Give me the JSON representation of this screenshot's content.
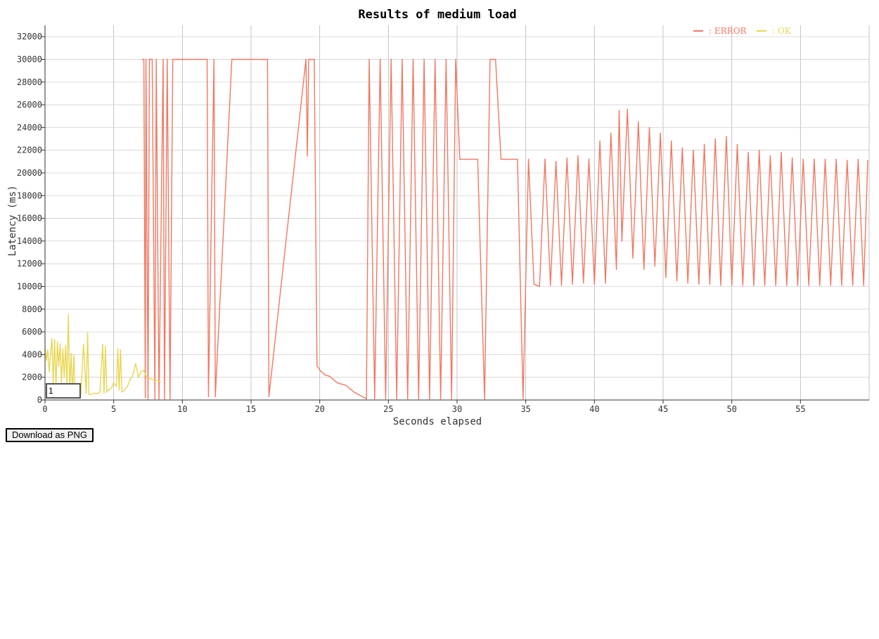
{
  "chart_data": {
    "type": "line",
    "title": "Results of medium load",
    "xlabel": "Seconds elapsed",
    "ylabel": "Latency (ms)",
    "xlim": [
      0,
      60
    ],
    "ylim": [
      0,
      33000
    ],
    "x_ticks": [
      0,
      5,
      10,
      15,
      20,
      25,
      30,
      35,
      40,
      45,
      50,
      55
    ],
    "y_ticks": [
      0,
      2000,
      4000,
      6000,
      8000,
      10000,
      12000,
      14000,
      16000,
      18000,
      20000,
      22000,
      24000,
      26000,
      28000,
      30000,
      32000
    ],
    "grid": true,
    "legend_position": "top-right",
    "series": [
      {
        "name": ": ERROR",
        "color": "#ef7862",
        "x": [
          7.1,
          7.2,
          7.3,
          7.35,
          7.5,
          7.6,
          7.8,
          8.0,
          8.1,
          8.3,
          8.6,
          8.7,
          8.9,
          9.1,
          9.3,
          9.5,
          9.6,
          11.8,
          11.9,
          12.3,
          12.4,
          13.6,
          13.7,
          16.2,
          16.3,
          19.0,
          19.1,
          19.2,
          19.6,
          19.8,
          20.1,
          20.4,
          20.7,
          21.0,
          21.3,
          21.6,
          21.9,
          22.2,
          22.5,
          22.8,
          23.1,
          23.4,
          23.6,
          24.0,
          24.4,
          24.8,
          25.2,
          25.6,
          26.0,
          26.4,
          26.8,
          27.2,
          27.6,
          28.0,
          28.4,
          28.8,
          29.2,
          29.6,
          29.9,
          30.2,
          30.6,
          31.0,
          31.5,
          32.0,
          32.4,
          32.8,
          33.2,
          33.6,
          34.0,
          34.4,
          34.8,
          35.2,
          35.6,
          35.8,
          36.0,
          36.4,
          36.8,
          37.2,
          37.6,
          38.0,
          38.4,
          38.8,
          39.2,
          39.6,
          40.0,
          40.4,
          40.8,
          41.2,
          41.6,
          41.8,
          42.0,
          42.4,
          42.8,
          43.2,
          43.6,
          44.0,
          44.4,
          44.8,
          45.2,
          45.6,
          46.0,
          46.4,
          46.8,
          47.2,
          47.6,
          48.0,
          48.4,
          48.8,
          49.2,
          49.6,
          50.0,
          50.4,
          50.8,
          51.2,
          51.6,
          52.0,
          52.4,
          52.8,
          53.2,
          53.6,
          54.0,
          54.4,
          54.8,
          55.2,
          55.6,
          56.0,
          56.4,
          56.8,
          57.2,
          57.6,
          58.0,
          58.4,
          58.8,
          59.2,
          59.6,
          59.9
        ],
        "y": [
          30000,
          30000,
          200,
          30000,
          100,
          30000,
          30000,
          100,
          30000,
          100,
          30000,
          100,
          30000,
          100,
          30000,
          30000,
          30000,
          30000,
          300,
          30000,
          300,
          30000,
          30000,
          30000,
          300,
          30000,
          21500,
          30000,
          30000,
          3000,
          2500,
          2200,
          2100,
          1800,
          1500,
          1400,
          1300,
          1000,
          700,
          500,
          300,
          100,
          30000,
          100,
          30000,
          100,
          30000,
          100,
          30000,
          100,
          30000,
          100,
          30000,
          100,
          30000,
          100,
          30000,
          100,
          30000,
          21200,
          21200,
          21200,
          21200,
          100,
          30000,
          30000,
          21200,
          21200,
          21200,
          21200,
          100,
          21200,
          10200,
          10100,
          10000,
          21200,
          10100,
          21000,
          10100,
          21300,
          10200,
          21500,
          10300,
          21200,
          10200,
          22800,
          10300,
          23500,
          11500,
          25500,
          14000,
          25600,
          12500,
          24500,
          11500,
          24000,
          11800,
          23500,
          10800,
          22800,
          10500,
          22200,
          10300,
          22000,
          10200,
          22500,
          10200,
          23000,
          10100,
          23200,
          10100,
          22500,
          10100,
          21800,
          10100,
          22000,
          10100,
          21500,
          10100,
          21800,
          10100,
          21300,
          10100,
          21200,
          10100,
          21200,
          10100,
          21200,
          10100,
          21200,
          10100,
          21100,
          10100,
          21200,
          10100,
          21100
        ]
      },
      {
        "name": ": OK",
        "color": "#e8d650",
        "x": [
          0.0,
          0.1,
          0.2,
          0.3,
          0.4,
          0.5,
          0.6,
          0.7,
          0.8,
          0.9,
          1.0,
          1.1,
          1.2,
          1.3,
          1.4,
          1.5,
          1.6,
          1.7,
          1.8,
          1.9,
          2.0,
          2.1,
          2.2,
          2.4,
          2.6,
          2.8,
          3.0,
          3.1,
          3.2,
          3.4,
          3.6,
          3.8,
          4.0,
          4.2,
          4.3,
          4.4,
          4.5,
          4.6,
          4.8,
          5.0,
          5.2,
          5.3,
          5.4,
          5.5,
          5.6,
          5.8,
          6.0,
          6.2,
          6.4,
          6.6,
          6.8,
          7.0,
          7.2,
          7.4,
          7.8,
          8.2,
          8.4
        ],
        "y": [
          4500,
          3500,
          4400,
          2500,
          4000,
          5400,
          1500,
          5300,
          1200,
          5100,
          3000,
          4900,
          1500,
          4500,
          2000,
          4800,
          1300,
          7500,
          800,
          4100,
          600,
          4000,
          500,
          400,
          450,
          4900,
          600,
          5900,
          500,
          500,
          600,
          550,
          700,
          4900,
          600,
          4700,
          700,
          900,
          1000,
          1500,
          1200,
          4500,
          900,
          4400,
          700,
          900,
          1200,
          1800,
          2200,
          3200,
          2000,
          2500,
          2600,
          2000,
          1800,
          1700,
          1600
        ]
      }
    ]
  },
  "ui": {
    "download_label": "Download as PNG",
    "frame_input_value": "1"
  }
}
